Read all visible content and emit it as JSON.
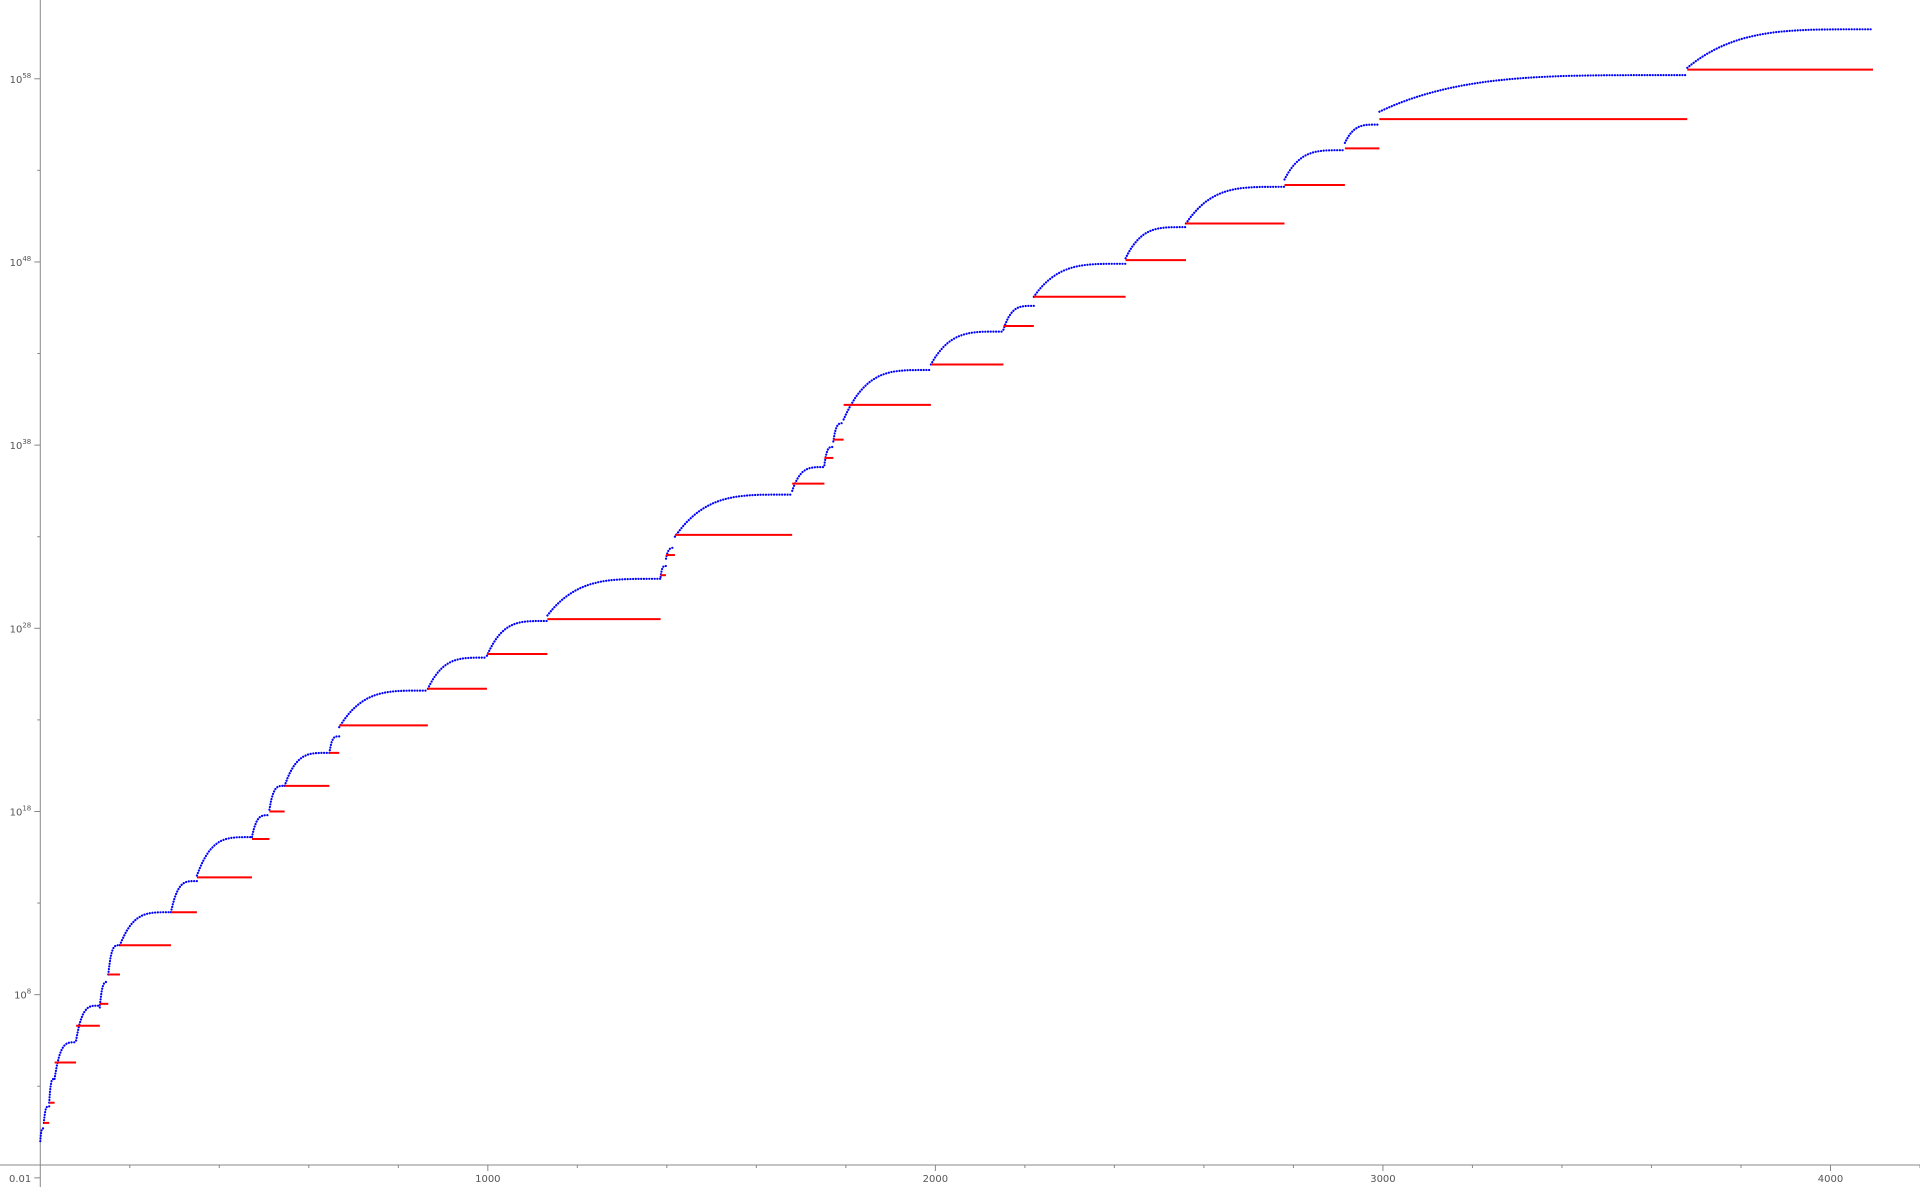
{
  "chart_data": {
    "type": "scatter",
    "title": "",
    "xlabel": "",
    "ylabel": "",
    "x_scale": "linear",
    "y_scale": "log10",
    "xlim": [
      -90,
      4200
    ],
    "ylim_log10": [
      -2.5,
      62.3
    ],
    "grid": false,
    "legend": "none",
    "x_ticks": [
      {
        "value": 1000,
        "label": "1000"
      },
      {
        "value": 2000,
        "label": "2000"
      },
      {
        "value": 3000,
        "label": "3000"
      },
      {
        "value": 4000,
        "label": "4000"
      }
    ],
    "x_minor_ticks": [
      200,
      400,
      600,
      800,
      1200,
      1400,
      1600,
      1800,
      2200,
      2400,
      2600,
      2800,
      3200,
      3400,
      3600,
      3800,
      4200
    ],
    "y_ticks": [
      {
        "exp": -2,
        "mantissa": "0.01",
        "base": "",
        "sup": ""
      },
      {
        "exp": 8,
        "mantissa": "",
        "base": "10",
        "sup": "8"
      },
      {
        "exp": 18,
        "mantissa": "",
        "base": "10",
        "sup": "18"
      },
      {
        "exp": 28,
        "mantissa": "",
        "base": "10",
        "sup": "28"
      },
      {
        "exp": 38,
        "mantissa": "",
        "base": "10",
        "sup": "38"
      },
      {
        "exp": 48,
        "mantissa": "",
        "base": "10",
        "sup": "48"
      },
      {
        "exp": 58,
        "mantissa": "",
        "base": "10",
        "sup": "58"
      }
    ],
    "y_minor_ticks_exp": [
      3,
      13,
      23,
      33,
      43,
      53
    ],
    "colors": {
      "blue": "#0000ff",
      "red": "#ff0000",
      "axis": "#888888",
      "tick_label": "#555555"
    },
    "series": [
      {
        "color": "blue",
        "style": "rising-arcs",
        "segments": [
          {
            "x_start": 0,
            "x_end": 8,
            "log10_start": 0.0,
            "log10_end": 0.7
          },
          {
            "x_start": 8,
            "x_end": 20,
            "log10_start": 1.0,
            "log10_end": 1.9
          },
          {
            "x_start": 20,
            "x_end": 32,
            "log10_start": 2.1,
            "log10_end": 3.4
          },
          {
            "x_start": 32,
            "x_end": 80,
            "log10_start": 3.4,
            "log10_end": 5.4
          },
          {
            "x_start": 80,
            "x_end": 133,
            "log10_start": 5.5,
            "log10_end": 7.4
          },
          {
            "x_start": 133,
            "x_end": 152,
            "log10_start": 7.3,
            "log10_end": 8.7
          },
          {
            "x_start": 152,
            "x_end": 178,
            "log10_start": 9.1,
            "log10_end": 10.7
          },
          {
            "x_start": 178,
            "x_end": 292,
            "log10_start": 10.7,
            "log10_end": 12.5
          },
          {
            "x_start": 292,
            "x_end": 350,
            "log10_start": 12.5,
            "log10_end": 14.2
          },
          {
            "x_start": 350,
            "x_end": 473,
            "log10_start": 14.5,
            "log10_end": 16.6
          },
          {
            "x_start": 473,
            "x_end": 512,
            "log10_start": 16.6,
            "log10_end": 17.8
          },
          {
            "x_start": 512,
            "x_end": 546,
            "log10_start": 18.1,
            "log10_end": 19.4
          },
          {
            "x_start": 546,
            "x_end": 646,
            "log10_start": 19.4,
            "log10_end": 21.2
          },
          {
            "x_start": 646,
            "x_end": 668,
            "log10_start": 21.2,
            "log10_end": 22.1
          },
          {
            "x_start": 668,
            "x_end": 866,
            "log10_start": 22.6,
            "log10_end": 24.6
          },
          {
            "x_start": 866,
            "x_end": 998,
            "log10_start": 24.7,
            "log10_end": 26.4
          },
          {
            "x_start": 998,
            "x_end": 1133,
            "log10_start": 26.5,
            "log10_end": 28.4
          },
          {
            "x_start": 1133,
            "x_end": 1386,
            "log10_start": 28.7,
            "log10_end": 30.7
          },
          {
            "x_start": 1386,
            "x_end": 1398,
            "log10_start": 30.8,
            "log10_end": 31.4
          },
          {
            "x_start": 1398,
            "x_end": 1418,
            "log10_start": 31.8,
            "log10_end": 32.4
          },
          {
            "x_start": 1418,
            "x_end": 1680,
            "log10_start": 33.0,
            "log10_end": 35.3
          },
          {
            "x_start": 1680,
            "x_end": 1752,
            "log10_start": 35.5,
            "log10_end": 36.8
          },
          {
            "x_start": 1752,
            "x_end": 1772,
            "log10_start": 36.9,
            "log10_end": 37.9
          },
          {
            "x_start": 1772,
            "x_end": 1795,
            "log10_start": 38.2,
            "log10_end": 39.2
          },
          {
            "x_start": 1795,
            "x_end": 1990,
            "log10_start": 39.4,
            "log10_end": 42.1
          },
          {
            "x_start": 1990,
            "x_end": 2152,
            "log10_start": 42.4,
            "log10_end": 44.2
          },
          {
            "x_start": 2152,
            "x_end": 2220,
            "log10_start": 44.3,
            "log10_end": 45.6
          },
          {
            "x_start": 2220,
            "x_end": 2425,
            "log10_start": 46.1,
            "log10_end": 47.9
          },
          {
            "x_start": 2425,
            "x_end": 2560,
            "log10_start": 48.2,
            "log10_end": 49.9
          },
          {
            "x_start": 2560,
            "x_end": 2780,
            "log10_start": 50.1,
            "log10_end": 52.1
          },
          {
            "x_start": 2780,
            "x_end": 2915,
            "log10_start": 52.5,
            "log10_end": 54.1
          },
          {
            "x_start": 2915,
            "x_end": 2992,
            "log10_start": 54.5,
            "log10_end": 55.5
          },
          {
            "x_start": 2992,
            "x_end": 3680,
            "log10_start": 56.2,
            "log10_end": 58.2
          },
          {
            "x_start": 3680,
            "x_end": 4095,
            "log10_start": 58.6,
            "log10_end": 60.7
          }
        ]
      },
      {
        "color": "red",
        "style": "steps",
        "segments": [
          {
            "x_start": 8,
            "x_end": 20,
            "log10": 1.0
          },
          {
            "x_start": 20,
            "x_end": 32,
            "log10": 2.1
          },
          {
            "x_start": 32,
            "x_end": 80,
            "log10": 4.3
          },
          {
            "x_start": 80,
            "x_end": 133,
            "log10": 6.3
          },
          {
            "x_start": 133,
            "x_end": 152,
            "log10": 7.5
          },
          {
            "x_start": 152,
            "x_end": 178,
            "log10": 9.1
          },
          {
            "x_start": 178,
            "x_end": 292,
            "log10": 10.7
          },
          {
            "x_start": 292,
            "x_end": 350,
            "log10": 12.5
          },
          {
            "x_start": 350,
            "x_end": 473,
            "log10": 14.4
          },
          {
            "x_start": 473,
            "x_end": 512,
            "log10": 16.5
          },
          {
            "x_start": 512,
            "x_end": 546,
            "log10": 18.0
          },
          {
            "x_start": 546,
            "x_end": 646,
            "log10": 19.4
          },
          {
            "x_start": 646,
            "x_end": 668,
            "log10": 21.2
          },
          {
            "x_start": 668,
            "x_end": 866,
            "log10": 22.7
          },
          {
            "x_start": 866,
            "x_end": 998,
            "log10": 24.7
          },
          {
            "x_start": 998,
            "x_end": 1133,
            "log10": 26.6
          },
          {
            "x_start": 1133,
            "x_end": 1386,
            "log10": 28.5
          },
          {
            "x_start": 1386,
            "x_end": 1398,
            "log10": 30.9
          },
          {
            "x_start": 1398,
            "x_end": 1418,
            "log10": 32.0
          },
          {
            "x_start": 1418,
            "x_end": 1680,
            "log10": 33.1
          },
          {
            "x_start": 1680,
            "x_end": 1752,
            "log10": 35.9
          },
          {
            "x_start": 1752,
            "x_end": 1772,
            "log10": 37.3
          },
          {
            "x_start": 1772,
            "x_end": 1795,
            "log10": 38.3
          },
          {
            "x_start": 1795,
            "x_end": 1990,
            "log10": 40.2
          },
          {
            "x_start": 1990,
            "x_end": 2152,
            "log10": 42.4
          },
          {
            "x_start": 2152,
            "x_end": 2220,
            "log10": 44.5
          },
          {
            "x_start": 2220,
            "x_end": 2425,
            "log10": 46.1
          },
          {
            "x_start": 2425,
            "x_end": 2560,
            "log10": 48.1
          },
          {
            "x_start": 2560,
            "x_end": 2780,
            "log10": 50.1
          },
          {
            "x_start": 2780,
            "x_end": 2915,
            "log10": 52.2
          },
          {
            "x_start": 2915,
            "x_end": 2992,
            "log10": 54.2
          },
          {
            "x_start": 2992,
            "x_end": 3680,
            "log10": 55.8
          },
          {
            "x_start": 3680,
            "x_end": 4095,
            "log10": 58.5
          }
        ]
      }
    ]
  }
}
